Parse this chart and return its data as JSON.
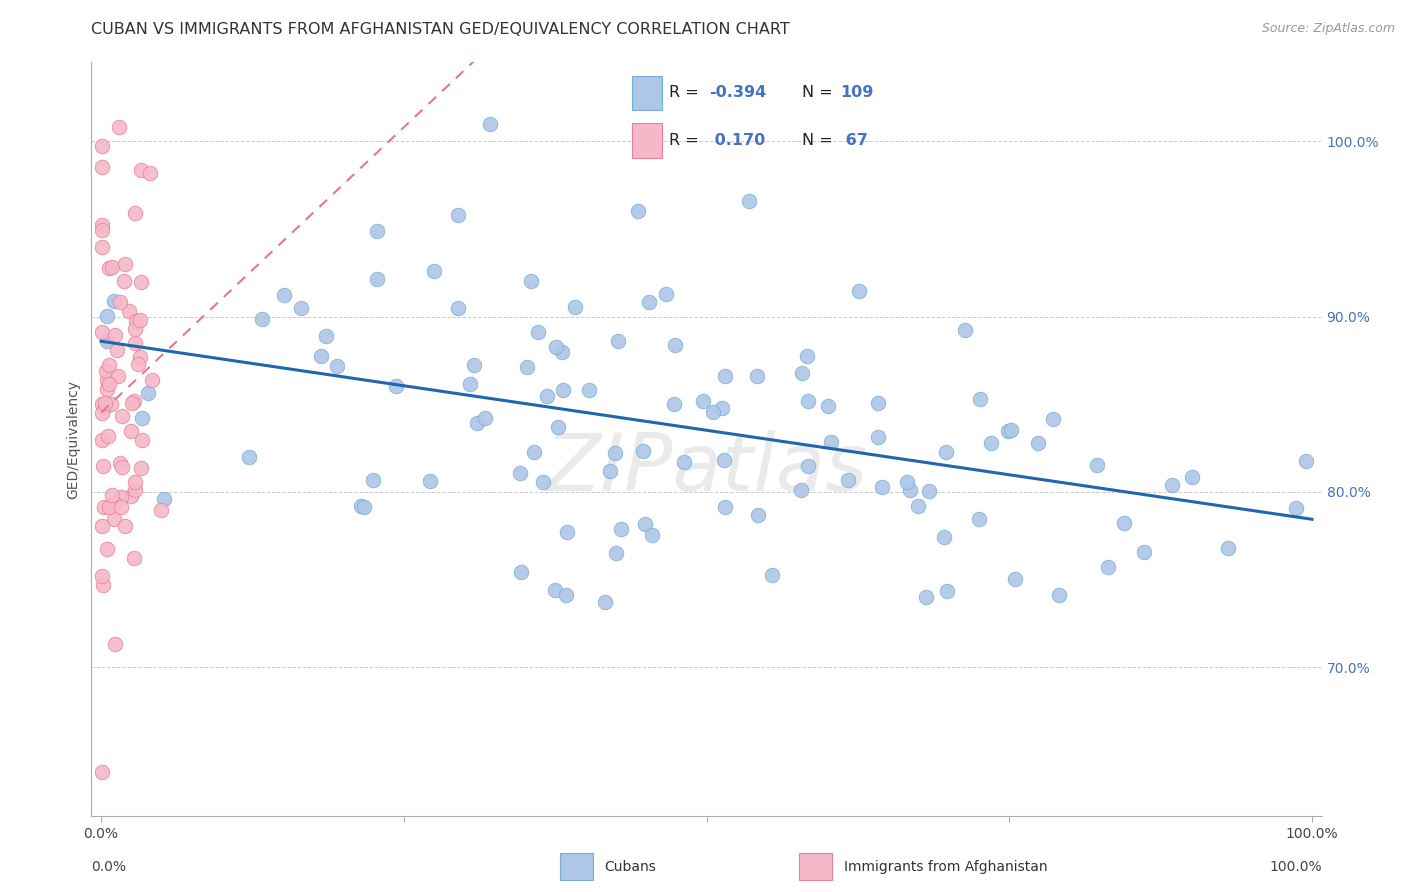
{
  "title": "CUBAN VS IMMIGRANTS FROM AFGHANISTAN GED/EQUIVALENCY CORRELATION CHART",
  "source": "Source: ZipAtlas.com",
  "ylabel": "GED/Equivalency",
  "blue_color": "#aec6e8",
  "pink_color": "#f5b8c8",
  "blue_edge_color": "#7aadd4",
  "pink_edge_color": "#e8809a",
  "blue_line_color": "#2166ac",
  "pink_line_color": "#e8768a",
  "background_color": "#ffffff",
  "grid_color": "#cccccc",
  "watermark": "ZIPatlas",
  "title_color": "#333333",
  "source_color": "#999999",
  "ylabel_color": "#555555",
  "right_tick_color": "#4472c4",
  "legend_r_color": "#4472c4",
  "legend_text_color": "#222222",
  "n_cubans": 109,
  "n_afghan": 67,
  "seed": 42
}
